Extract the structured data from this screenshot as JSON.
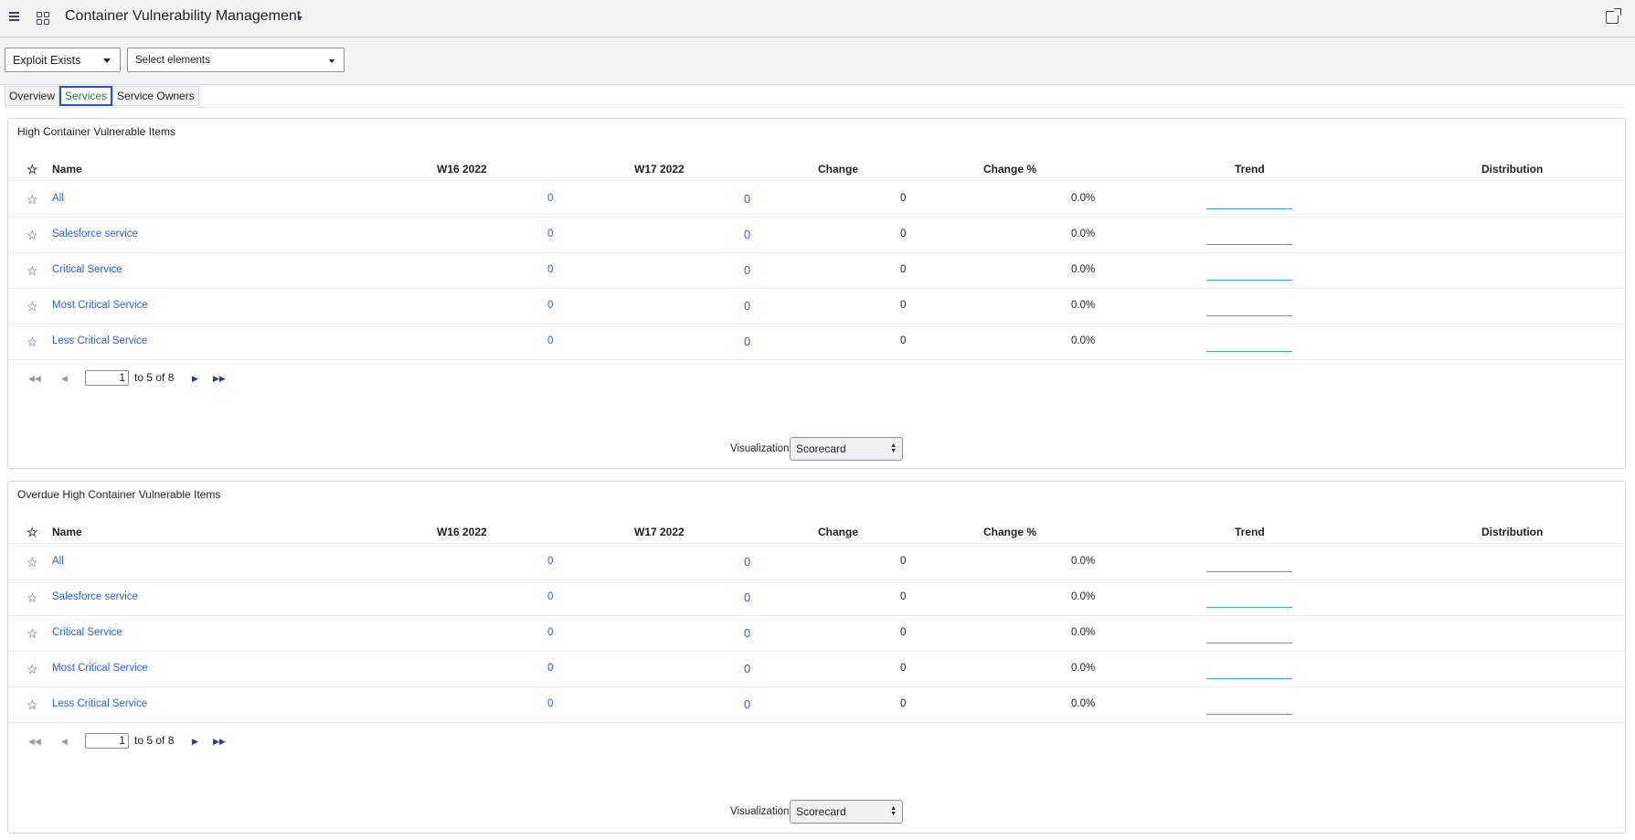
{
  "header": {
    "title": "Container Vulnerability Management",
    "menu_icon": "hamburger-menu-icon",
    "apps_icon": "grid-apps-icon",
    "share_icon": "external-share-icon"
  },
  "filters": {
    "exploit": "Exploit Exists",
    "elements_placeholder": "Select elements"
  },
  "tabs": [
    {
      "label": "Overview"
    },
    {
      "label": "Services"
    },
    {
      "label": "Service Owners"
    }
  ],
  "columns": {
    "name": "Name",
    "w16": "W16 2022",
    "w17": "W17 2022",
    "change": "Change",
    "change_pct": "Change %",
    "trend": "Trend",
    "distribution": "Distribution"
  },
  "panels": [
    {
      "title": "High Container Vulnerable Items",
      "rows": [
        {
          "name": "All",
          "w16": "0",
          "w17": "0",
          "change": "0",
          "change_pct": "0.0%"
        },
        {
          "name": "Salesforce service",
          "w16": "0",
          "w17": "0",
          "change": "0",
          "change_pct": "0.0%"
        },
        {
          "name": "Critical Service",
          "w16": "0",
          "w17": "0",
          "change": "0",
          "change_pct": "0.0%"
        },
        {
          "name": "Most Critical Service",
          "w16": "0",
          "w17": "0",
          "change": "0",
          "change_pct": "0.0%"
        },
        {
          "name": "Less Critical Service",
          "w16": "0",
          "w17": "0",
          "change": "0",
          "change_pct": "0.0%"
        }
      ],
      "pager": {
        "page": "1",
        "text": "to 5 of 8"
      },
      "viz_label": "Visualization",
      "viz_value": "Scorecard"
    },
    {
      "title": "Overdue High Container Vulnerable Items",
      "rows": [
        {
          "name": "All",
          "w16": "0",
          "w17": "0",
          "change": "0",
          "change_pct": "0.0%"
        },
        {
          "name": "Salesforce service",
          "w16": "0",
          "w17": "0",
          "change": "0",
          "change_pct": "0.0%"
        },
        {
          "name": "Critical Service",
          "w16": "0",
          "w17": "0",
          "change": "0",
          "change_pct": "0.0%"
        },
        {
          "name": "Most Critical Service",
          "w16": "0",
          "w17": "0",
          "change": "0",
          "change_pct": "0.0%"
        },
        {
          "name": "Less Critical Service",
          "w16": "0",
          "w17": "0",
          "change": "0",
          "change_pct": "0.0%"
        }
      ],
      "pager": {
        "page": "1",
        "text": "to 5 of 8"
      },
      "viz_label": "Visualization",
      "viz_value": "Scorecard"
    }
  ],
  "colors": {
    "link": "#2b5fd9",
    "active_tab_text": "#1a7f3a",
    "active_tab_border": "#2b4fbf",
    "trend_line": "#3aa8c8"
  }
}
